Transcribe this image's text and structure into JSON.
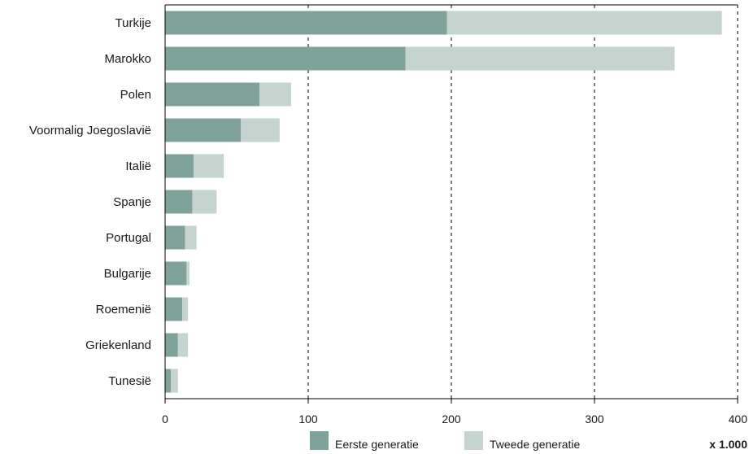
{
  "chart_data": {
    "type": "bar",
    "orientation": "horizontal",
    "stacked": true,
    "categories": [
      "Turkije",
      "Marokko",
      "Polen",
      "Voormalig Joegoslavië",
      "Italië",
      "Spanje",
      "Portugal",
      "Bulgarije",
      "Roemenië",
      "Griekenland",
      "Tunesië"
    ],
    "series": [
      {
        "name": "Eerste generatie",
        "color": "#7fa39b",
        "values": [
          197,
          168,
          66,
          53,
          20,
          19,
          14,
          15,
          12,
          9,
          4
        ]
      },
      {
        "name": "Tweede generatie",
        "color": "#c5d4cf",
        "values": [
          192,
          188,
          22,
          27,
          21,
          17,
          8,
          2,
          4,
          7,
          5
        ]
      }
    ],
    "xlim": [
      0,
      400
    ],
    "xticks": [
      "0",
      "100",
      "200",
      "300",
      "400"
    ],
    "grid": "vertical dashed",
    "legend_position": "bottom",
    "unit_label": "x 1.000"
  }
}
